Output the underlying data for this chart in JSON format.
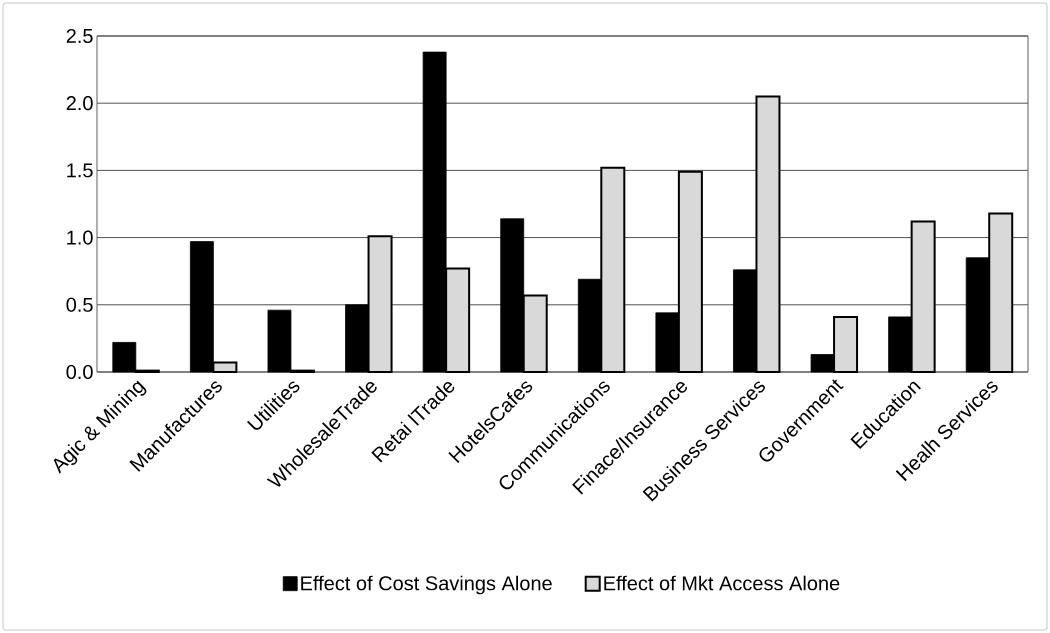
{
  "chart_data": {
    "type": "bar",
    "categories": [
      "Agic & Mining",
      "Manufactures",
      "Utilities",
      "WholesaleTrade",
      "Retai lTrade",
      "HotelsCafes",
      "Communications",
      "Finace/Insurance",
      "Business Services",
      "Government",
      "Education",
      "Healh Services"
    ],
    "series": [
      {
        "name": "Effect of Cost Savings Alone",
        "color": "#000000",
        "values": [
          0.22,
          0.97,
          0.46,
          0.5,
          2.38,
          1.14,
          0.69,
          0.44,
          0.76,
          0.13,
          0.41,
          0.85
        ]
      },
      {
        "name": "Effect of Mkt Access Alone",
        "color": "#d9d9d9",
        "values": [
          0.01,
          0.07,
          0.01,
          1.01,
          0.77,
          0.57,
          1.52,
          1.49,
          2.05,
          0.41,
          1.12,
          1.18
        ]
      }
    ],
    "ylim": [
      0,
      2.5
    ],
    "yticks": [
      {
        "value": 0,
        "label": "0.0"
      },
      0.5,
      {
        "value": 1,
        "label": "1.0"
      },
      1.5,
      {
        "value": 2,
        "label": "2.0"
      },
      2.5
    ],
    "grid": "y",
    "legend": "bottom"
  }
}
